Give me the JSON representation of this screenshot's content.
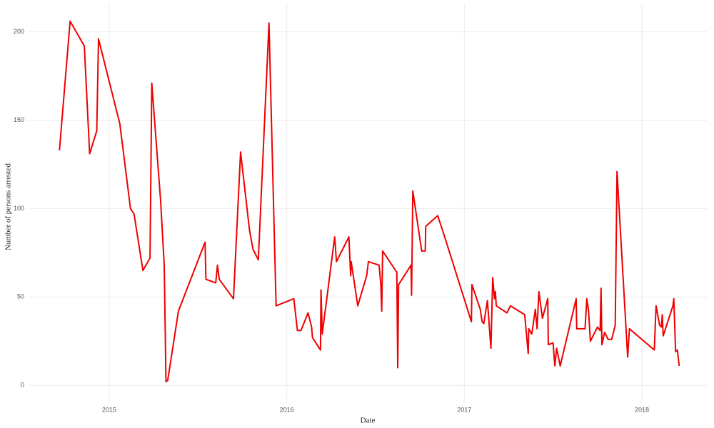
{
  "chart_data": {
    "type": "line",
    "x_label": "Date",
    "y_label": "Number of persons arrested",
    "xlim": [
      2014.546,
      2018.366
    ],
    "xticks": [
      2015,
      2016,
      2017,
      2018
    ],
    "ylim": [
      -10,
      216
    ],
    "yticks": [
      0,
      50,
      100,
      150,
      200
    ],
    "grid": true,
    "x": [
      2014.72,
      2014.78,
      2014.86,
      2014.89,
      2014.93,
      2014.94,
      2015.06,
      2015.12,
      2015.14,
      2015.19,
      2015.23,
      2015.24,
      2015.29,
      2015.31,
      2015.32,
      2015.33,
      2015.39,
      2015.54,
      2015.545,
      2015.6,
      2015.61,
      2015.62,
      2015.7,
      2015.74,
      2015.79,
      2015.81,
      2015.84,
      2015.9,
      2015.94,
      2016.04,
      2016.06,
      2016.08,
      2016.12,
      2016.14,
      2016.145,
      2016.19,
      2016.193,
      2016.2,
      2016.27,
      2016.28,
      2016.35,
      2016.36,
      2016.363,
      2016.4,
      2016.45,
      2016.46,
      2016.52,
      2016.53,
      2016.535,
      2016.54,
      2016.62,
      2016.625,
      2016.63,
      2016.7,
      2016.703,
      2016.71,
      2016.76,
      2016.78,
      2016.783,
      2016.85,
      2016.88,
      2017.04,
      2017.043,
      2017.09,
      2017.1,
      2017.11,
      2017.13,
      2017.15,
      2017.16,
      2017.17,
      2017.175,
      2017.18,
      2017.24,
      2017.26,
      2017.34,
      2017.36,
      2017.363,
      2017.38,
      2017.4,
      2017.41,
      2017.42,
      2017.44,
      2017.47,
      2017.473,
      2017.5,
      2017.51,
      2017.52,
      2017.54,
      2017.63,
      2017.633,
      2017.68,
      2017.69,
      2017.7,
      2017.71,
      2017.75,
      2017.765,
      2017.77,
      2017.775,
      2017.79,
      2017.81,
      2017.83,
      2017.85,
      2017.86,
      2017.92,
      2017.93,
      2018.07,
      2018.08,
      2018.1,
      2018.11,
      2018.115,
      2018.12,
      2018.175,
      2018.18,
      2018.19,
      2018.2,
      2018.21
    ],
    "series": [
      {
        "color": "#ee0000",
        "values": [
          133,
          206,
          192,
          131,
          144,
          196,
          148,
          100,
          97,
          65,
          72,
          171,
          104,
          68,
          2,
          3,
          42,
          81,
          60,
          58,
          68,
          60,
          49,
          132,
          88,
          77,
          71,
          205,
          45,
          49,
          31,
          31,
          41,
          33,
          27,
          20,
          54,
          29,
          84,
          70,
          84,
          62,
          70,
          45,
          62,
          70,
          68,
          57,
          42,
          76,
          64,
          10,
          57,
          68,
          51,
          110,
          76,
          76,
          90,
          96,
          87,
          36,
          57,
          43,
          36,
          35,
          48,
          21,
          61,
          49,
          53,
          45,
          41,
          45,
          40,
          18,
          32,
          29,
          43,
          32,
          53,
          38,
          49,
          23,
          24,
          11,
          21,
          11,
          49,
          32,
          32,
          49,
          42,
          25,
          33,
          31,
          55,
          23,
          30,
          26,
          26,
          34,
          121,
          16,
          32,
          20,
          45,
          34,
          33,
          40,
          28,
          45,
          49,
          19,
          20,
          11
        ]
      }
    ]
  }
}
